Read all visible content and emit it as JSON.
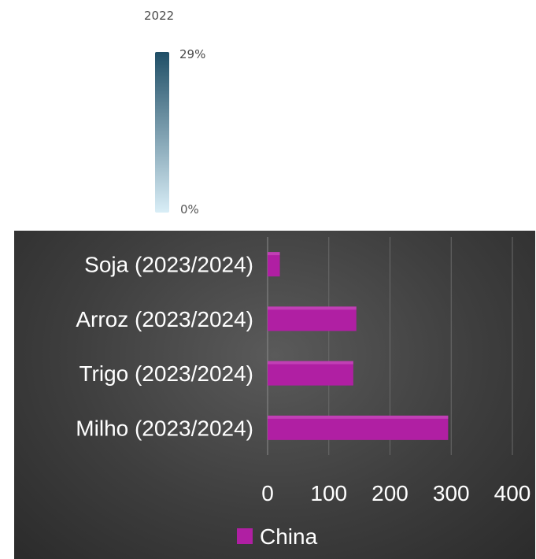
{
  "scale_legend": {
    "title": "2022",
    "max_label": "29%",
    "min_label": "0%",
    "color_high": "#1f4e66",
    "color_low": "#d9eef7"
  },
  "chart_data": {
    "type": "bar",
    "orientation": "horizontal",
    "categories": [
      "Soja (2023/2024)",
      "Arroz (2023/2024)",
      "Trigo (2023/2024)",
      "Milho (2023/2024)"
    ],
    "series": [
      {
        "name": "China",
        "values": [
          20,
          145,
          140,
          295
        ],
        "color": "#b01fa3"
      }
    ],
    "xlim": [
      0,
      400
    ],
    "xticks": [
      0,
      100,
      200,
      300,
      400
    ],
    "grid": true,
    "legend": "bottom",
    "background": "#3e3e3e",
    "text_color": "#ffffff"
  }
}
